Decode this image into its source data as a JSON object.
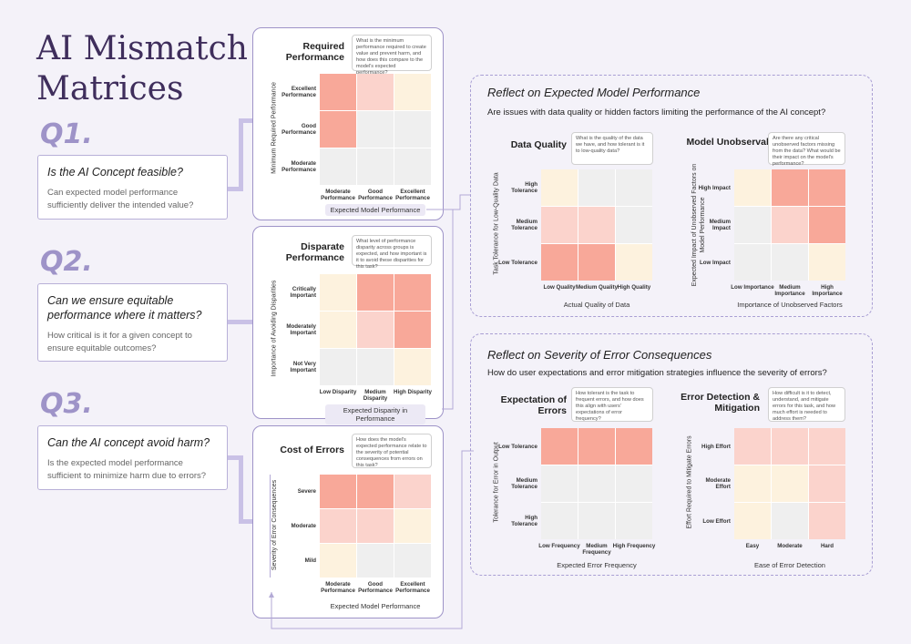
{
  "title": "AI Mismatch Matrices",
  "questions": [
    {
      "label": "Q1.",
      "question": "Is the AI Concept feasible?",
      "desc": "Can expected model performance sufficiently deliver the intended value?"
    },
    {
      "label": "Q2.",
      "question": "Can we ensure equitable performance where it matters?",
      "desc": "How critical is it for a given concept to ensure equitable outcomes?"
    },
    {
      "label": "Q3.",
      "question": "Can the AI concept avoid harm?",
      "desc": "Is the expected model performance sufficient to minimize harm due to errors?"
    }
  ],
  "matrices": {
    "required": {
      "title": "Required Performance",
      "note": "What is the minimum performance required to create value and prevent harm, and how does this compare to the model's expected performance?",
      "ylabel": "Minimum Required Performance",
      "xlabel": "Expected Model Performance",
      "rows": [
        "Excellent Performance",
        "Good Performance",
        "Moderate Performance"
      ],
      "cols": [
        "Moderate Performance",
        "Good Performance",
        "Excellent Performance"
      ],
      "cells": [
        [
          1,
          2,
          3
        ],
        [
          1,
          0,
          0
        ],
        [
          0,
          0,
          0
        ]
      ]
    },
    "disparate": {
      "title": "Disparate Performance",
      "note": "What level of performance disparity across groups is expected, and how important is it to avoid these disparities for this task?",
      "ylabel": "Importance of Avoiding Disparities",
      "xlabel": "Expected Disparity in Performance",
      "rows": [
        "Critically Important",
        "Moderately Important",
        "Not Very Important"
      ],
      "cols": [
        "Low Disparity",
        "Medium Disparity",
        "High Disparity"
      ],
      "cells": [
        [
          3,
          1,
          1
        ],
        [
          3,
          2,
          1
        ],
        [
          0,
          0,
          3
        ]
      ]
    },
    "cost": {
      "title": "Cost of Errors",
      "note": "How does the model's expected performance relate to the severity of potential consequences from errors on this task?",
      "ylabel": "Severity of Error Consequences",
      "xlabel": "Expected Model Performance",
      "rows": [
        "Severe",
        "Moderate",
        "Mild"
      ],
      "cols": [
        "Moderate Performance",
        "Good Performance",
        "Excellent Performance"
      ],
      "cells": [
        [
          1,
          1,
          2
        ],
        [
          2,
          2,
          3
        ],
        [
          3,
          0,
          0
        ]
      ]
    },
    "quality": {
      "title": "Data Quality",
      "note": "What is the quality of the data we have, and how tolerant is it to low-quality data?",
      "ylabel": "Task Tolerance for Low-Quality Data",
      "xlabel": "Actual Quality of Data",
      "rows": [
        "High Tolerance",
        "Medium Tolerance",
        "Low Tolerance"
      ],
      "cols": [
        "Low Quality",
        "Medium Quality",
        "High Quality"
      ],
      "cells": [
        [
          3,
          0,
          0
        ],
        [
          2,
          2,
          0
        ],
        [
          1,
          1,
          3
        ]
      ]
    },
    "unobservables": {
      "title": "Model Unobservables",
      "note": "Are there any critical unobserved factors missing from the data? What would be their impact on the model's performance?",
      "ylabel": "Expected Impact of Unobserved Factors on Model Performance",
      "xlabel": "Importance of Unobserved Factors",
      "rows": [
        "High Impact",
        "Medium Impact",
        "Low Impact"
      ],
      "cols": [
        "Low Importance",
        "Medium Importance",
        "High Importance"
      ],
      "cells": [
        [
          3,
          1,
          1
        ],
        [
          0,
          2,
          1
        ],
        [
          0,
          0,
          3
        ]
      ]
    },
    "expectation": {
      "title": "Expectation of Errors",
      "note": "How tolerant is the task to frequent errors, and how does this align with users' expectations of error frequency?",
      "ylabel": "Tolerance for Error in Output",
      "xlabel": "Expected Error Frequency",
      "rows": [
        "Low Tolerance",
        "Medium Tolerance",
        "High Tolerance"
      ],
      "cols": [
        "Low Frequency",
        "Medium Frequency",
        "High Frequency"
      ],
      "cells": [
        [
          1,
          1,
          1
        ],
        [
          0,
          0,
          0
        ],
        [
          0,
          0,
          0
        ]
      ]
    },
    "detection": {
      "title": "Error Detection & Mitigation",
      "note": "How difficult is it to detect, understand, and mitigate errors for this task, and how much effort is needed to address them?",
      "ylabel": "Effort Required to Mitigate Errors",
      "xlabel": "Ease of Error Detection",
      "rows": [
        "High Effort",
        "Moderate Effort",
        "Low Effort"
      ],
      "cols": [
        "Easy",
        "Moderate",
        "Hard"
      ],
      "cells": [
        [
          2,
          2,
          2
        ],
        [
          3,
          3,
          2
        ],
        [
          3,
          0,
          2
        ]
      ]
    }
  },
  "panels": {
    "perf": {
      "title": "Reflect on Expected Model Performance",
      "subtitle": "Are issues with data quality or hidden factors limiting the performance of the AI concept?"
    },
    "sev": {
      "title": "Reflect on Severity of Error Consequences",
      "subtitle": "How do user expectations and error mitigation strategies influence the severity of errors?"
    }
  },
  "colors": {
    "high": "#f8a899",
    "medium": "#fbd3cc",
    "low": "#fdf2de",
    "none": "#efefef",
    "accent": "#9e93c8"
  }
}
